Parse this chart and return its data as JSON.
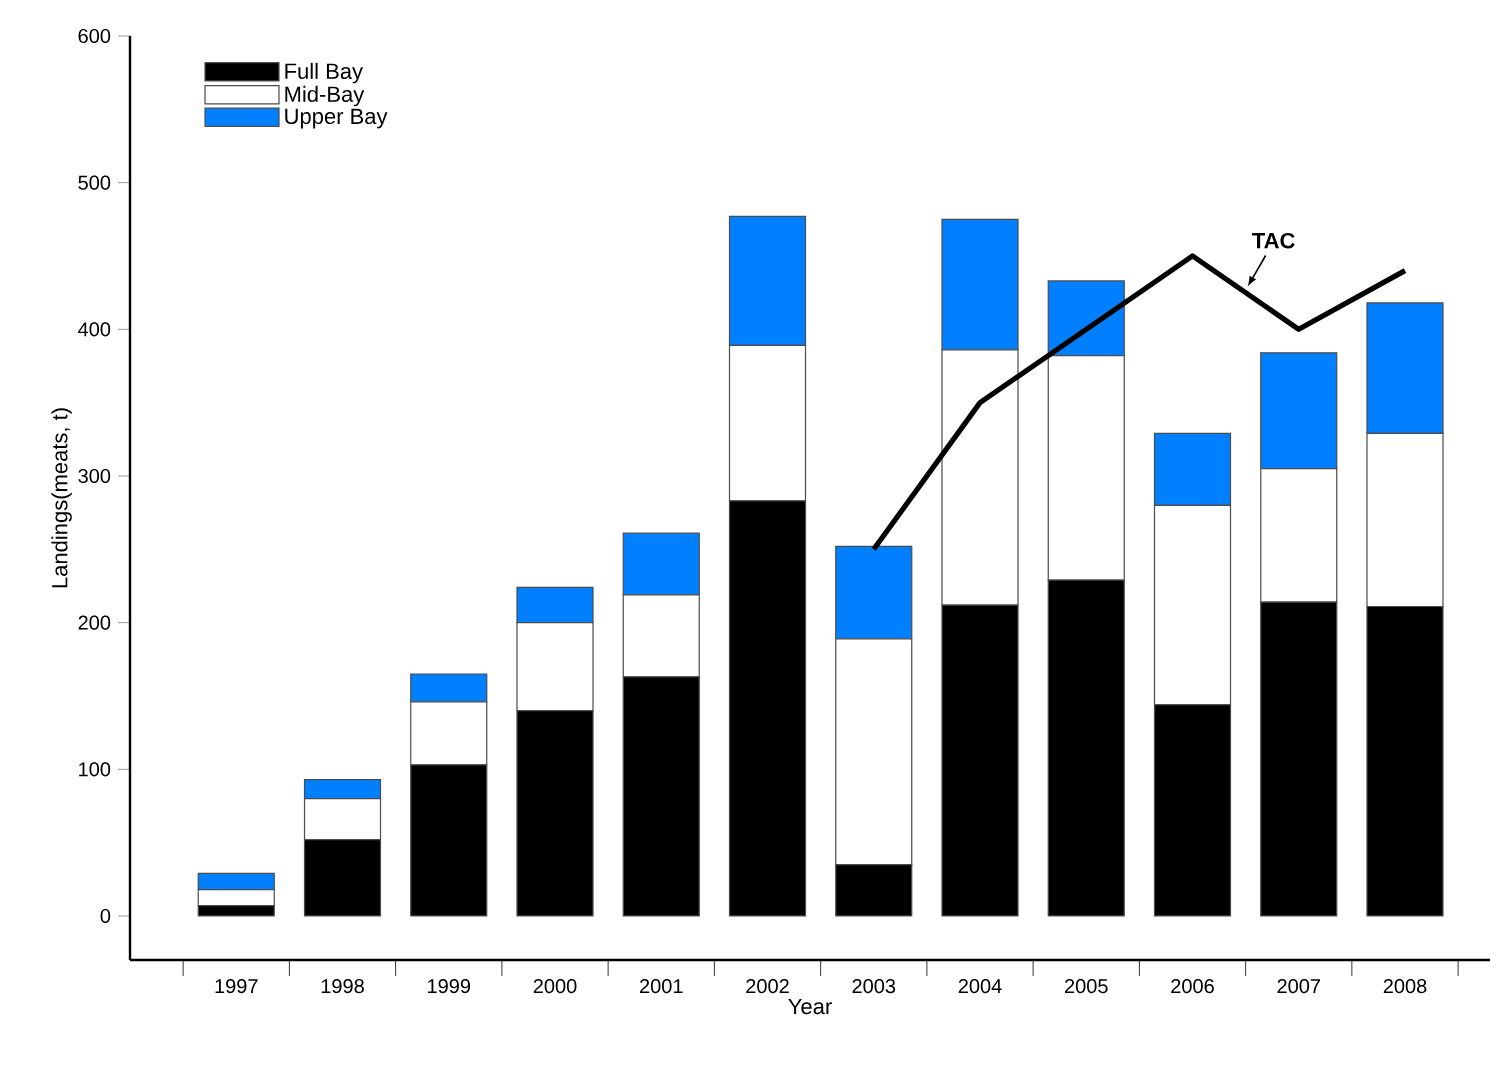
{
  "chart_data": {
    "type": "bar",
    "stacked": true,
    "xlabel": "Year",
    "ylabel": "Landings(meats, t)",
    "categories": [
      "1997",
      "1998",
      "1999",
      "2000",
      "2001",
      "2002",
      "2003",
      "2004",
      "2005",
      "2006",
      "2007",
      "2008"
    ],
    "series": [
      {
        "name": "Full Bay",
        "color": "#000000",
        "values": [
          7,
          52,
          103,
          140,
          163,
          283,
          35,
          212,
          229,
          144,
          214,
          211
        ]
      },
      {
        "name": "Mid-Bay",
        "color": "#ffffff",
        "values": [
          11,
          28,
          43,
          60,
          56,
          106,
          154,
          174,
          153,
          136,
          91,
          118
        ]
      },
      {
        "name": "Upper Bay",
        "color": "#0080ff",
        "values": [
          11,
          13,
          19,
          24,
          42,
          88,
          63,
          89,
          51,
          49,
          79,
          89
        ]
      },
      {
        "name": "TAC",
        "type": "line",
        "color": "#000000",
        "values": [
          null,
          null,
          null,
          null,
          null,
          null,
          250,
          350,
          400,
          450,
          400,
          440
        ]
      }
    ],
    "ylim": [
      -30,
      600
    ],
    "yticks": [
      0,
      100,
      200,
      300,
      400,
      500,
      600
    ],
    "grid": false,
    "legend": "top left"
  }
}
